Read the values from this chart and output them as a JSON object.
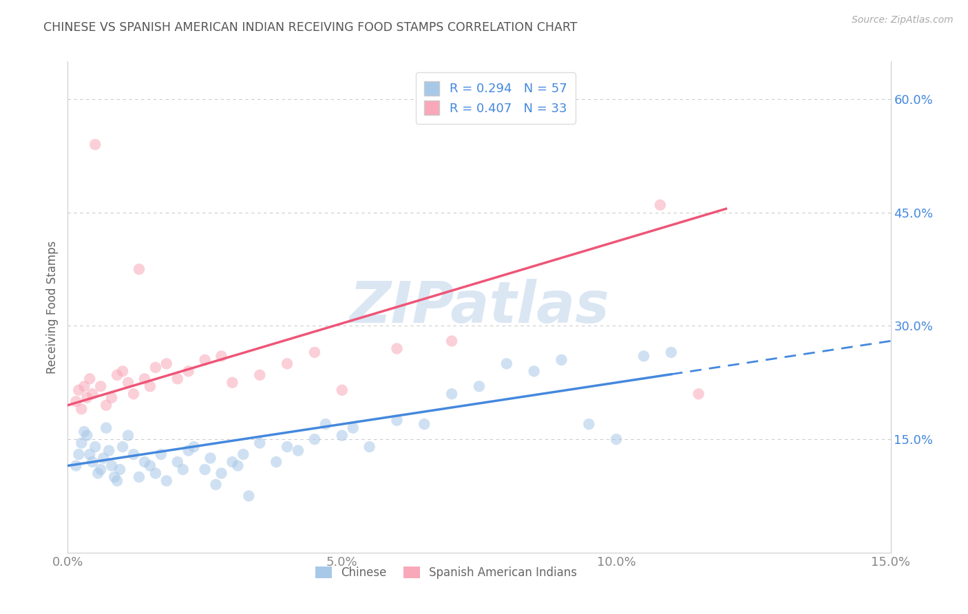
{
  "title": "CHINESE VS SPANISH AMERICAN INDIAN RECEIVING FOOD STAMPS CORRELATION CHART",
  "source": "Source: ZipAtlas.com",
  "ylabel": "Receiving Food Stamps",
  "watermark": "ZIPatlas",
  "xlim": [
    0.0,
    15.0
  ],
  "ylim": [
    0.0,
    65.0
  ],
  "xtick_vals": [
    0,
    5,
    10,
    15
  ],
  "ytick_vals": [
    15,
    30,
    45,
    60
  ],
  "blue_R": 0.294,
  "blue_N": 57,
  "pink_R": 0.407,
  "pink_N": 33,
  "chinese_color": "#A8C8E8",
  "spanish_color": "#F8A8B8",
  "chinese_line_color": "#4488DD",
  "spanish_line_color": "#EE5577",
  "background_color": "#FFFFFF",
  "grid_color": "#CCCCCC",
  "title_color": "#555555",
  "watermark_color": "#C8DAEE",
  "ytick_color": "#4488DD",
  "xtick_color": "#888888",
  "blue_line_x0": 0.0,
  "blue_line_y0": 11.5,
  "blue_line_x1": 15.0,
  "blue_line_y1": 28.0,
  "blue_solid_end_x": 11.0,
  "pink_line_x0": 0.0,
  "pink_line_y0": 19.5,
  "pink_line_x1": 12.0,
  "pink_line_y1": 45.5
}
